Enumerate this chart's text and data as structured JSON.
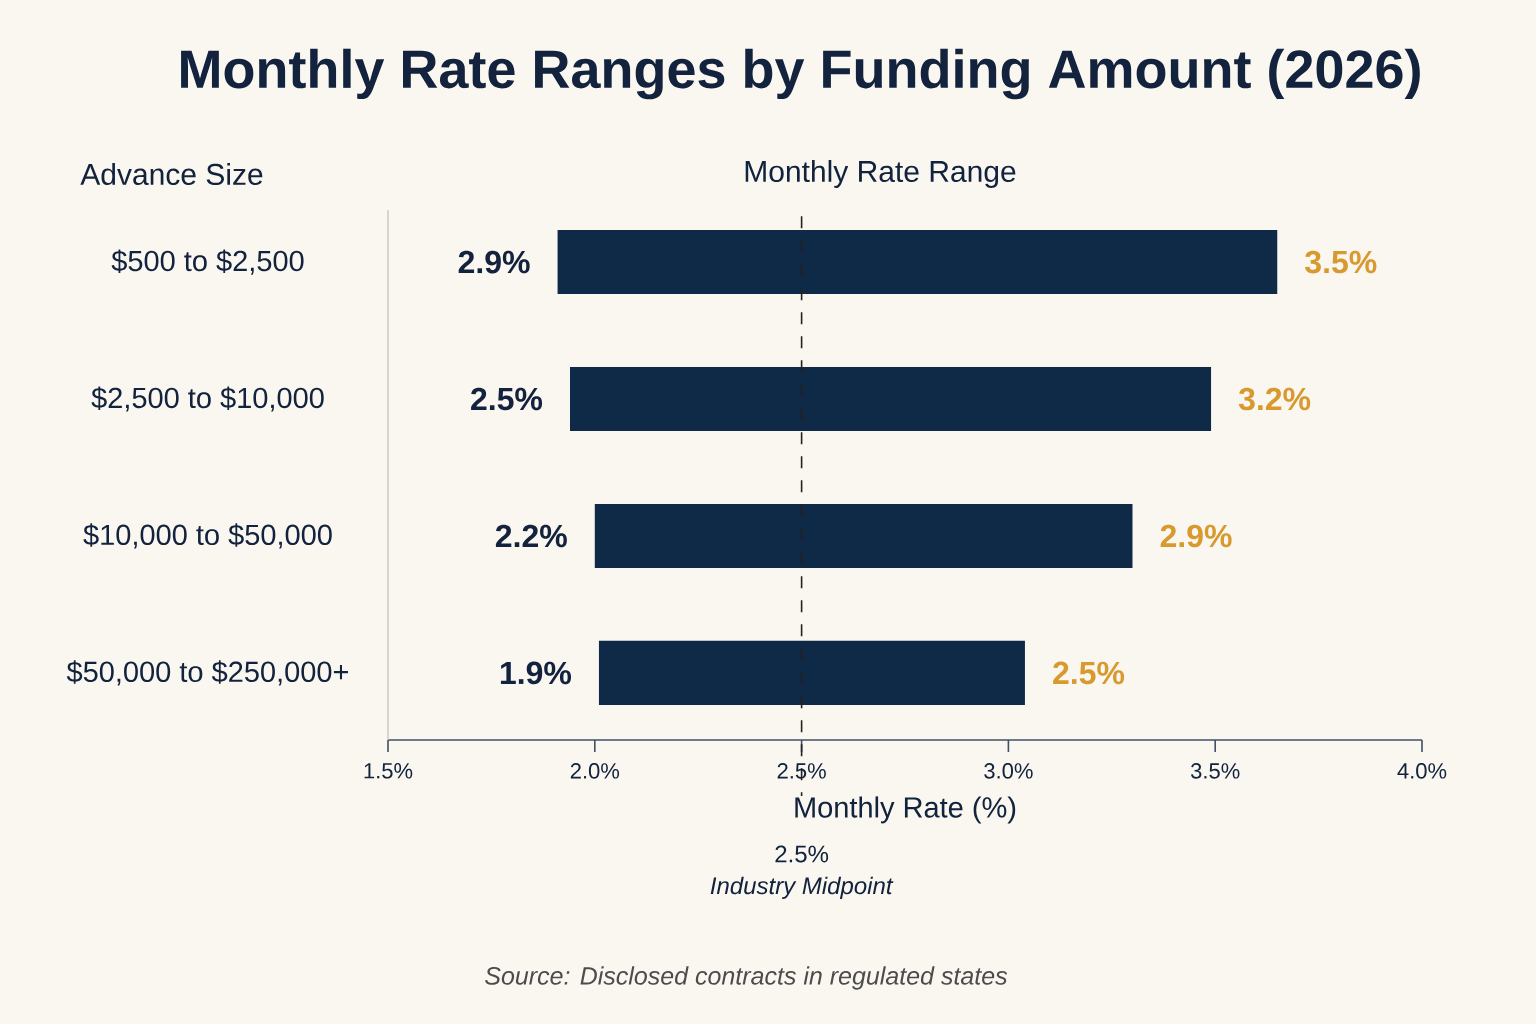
{
  "chart_data": {
    "type": "bar",
    "orientation": "horizontal",
    "title": "Monthly Rate Ranges by Funding Amount (2026)",
    "subtitle": "Monthly Rate Range",
    "ylabel": "Advance Size",
    "xlabel": "Monthly Rate (%)",
    "categories": [
      "$500 to $2,500",
      "$2,500 to $10,000",
      "$10,000 to $50,000",
      "$50,000 to $250,000+"
    ],
    "base": [
      1.91,
      1.94,
      2.0,
      2.01
    ],
    "values": [
      1.74,
      1.55,
      1.3,
      1.03
    ],
    "color": "#0f2a47",
    "xlim": [
      1.5,
      4.0
    ],
    "xticks": [
      {
        "value": 1.5,
        "label": "1.5%"
      },
      {
        "value": 2.0,
        "label": "2.0%"
      },
      {
        "value": 2.5,
        "label": "2.5%"
      },
      {
        "value": 3.0,
        "label": "3.0%"
      },
      {
        "value": 3.5,
        "label": "3.5%"
      },
      {
        "value": 4.0,
        "label": "4.0%"
      }
    ],
    "ref_lines": [
      {
        "axis": "x",
        "value": 2.5,
        "label": "2.5%",
        "line_style": "dashed",
        "color": "#222222"
      }
    ],
    "annotations": [
      {
        "text": "2.9%",
        "x": 1.91,
        "y": "$500 to $2,500"
      },
      {
        "text": "3.5%",
        "x": 3.65,
        "y": "$500 to $2,500"
      },
      {
        "text": "2.5%",
        "x": 1.94,
        "y": "$2,500 to $10,000"
      },
      {
        "text": "3.2%",
        "x": 3.49,
        "y": "$2,500 to $10,000"
      },
      {
        "text": "2.2%",
        "x": 2.0,
        "y": "$10,000 to $50,000"
      },
      {
        "text": "2.9%",
        "x": 3.3,
        "y": "$10,000 to $50,000"
      },
      {
        "text": "1.9%",
        "x": 2.01,
        "y": "$50,000 to $250,000+"
      },
      {
        "text": "2.5%",
        "x": 3.04,
        "y": "$50,000 to $250,000+"
      },
      "*Industry Midpoint*",
      "*Source: Disclosed contracts in regulated states*"
    ]
  }
}
